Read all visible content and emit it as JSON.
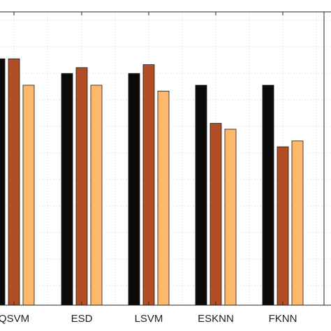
{
  "chart_data": {
    "type": "bar",
    "categories": [
      "QSVM",
      "ESD",
      "LSVM",
      "ESKNN",
      "FKNN"
    ],
    "series": [
      {
        "values": [
          0.84,
          0.79,
          0.79,
          0.75,
          0.75
        ],
        "color": "#0a0a0a"
      },
      {
        "values": [
          0.84,
          0.81,
          0.82,
          0.62,
          0.54
        ],
        "color": "#b34d24"
      },
      {
        "values": [
          0.75,
          0.75,
          0.73,
          0.6,
          0.56
        ],
        "color": "#fcb86b"
      }
    ],
    "ylim": [
      0,
      1.0
    ],
    "grid": true,
    "legend": "none",
    "title": "",
    "xlabel": "",
    "ylabel": ""
  }
}
